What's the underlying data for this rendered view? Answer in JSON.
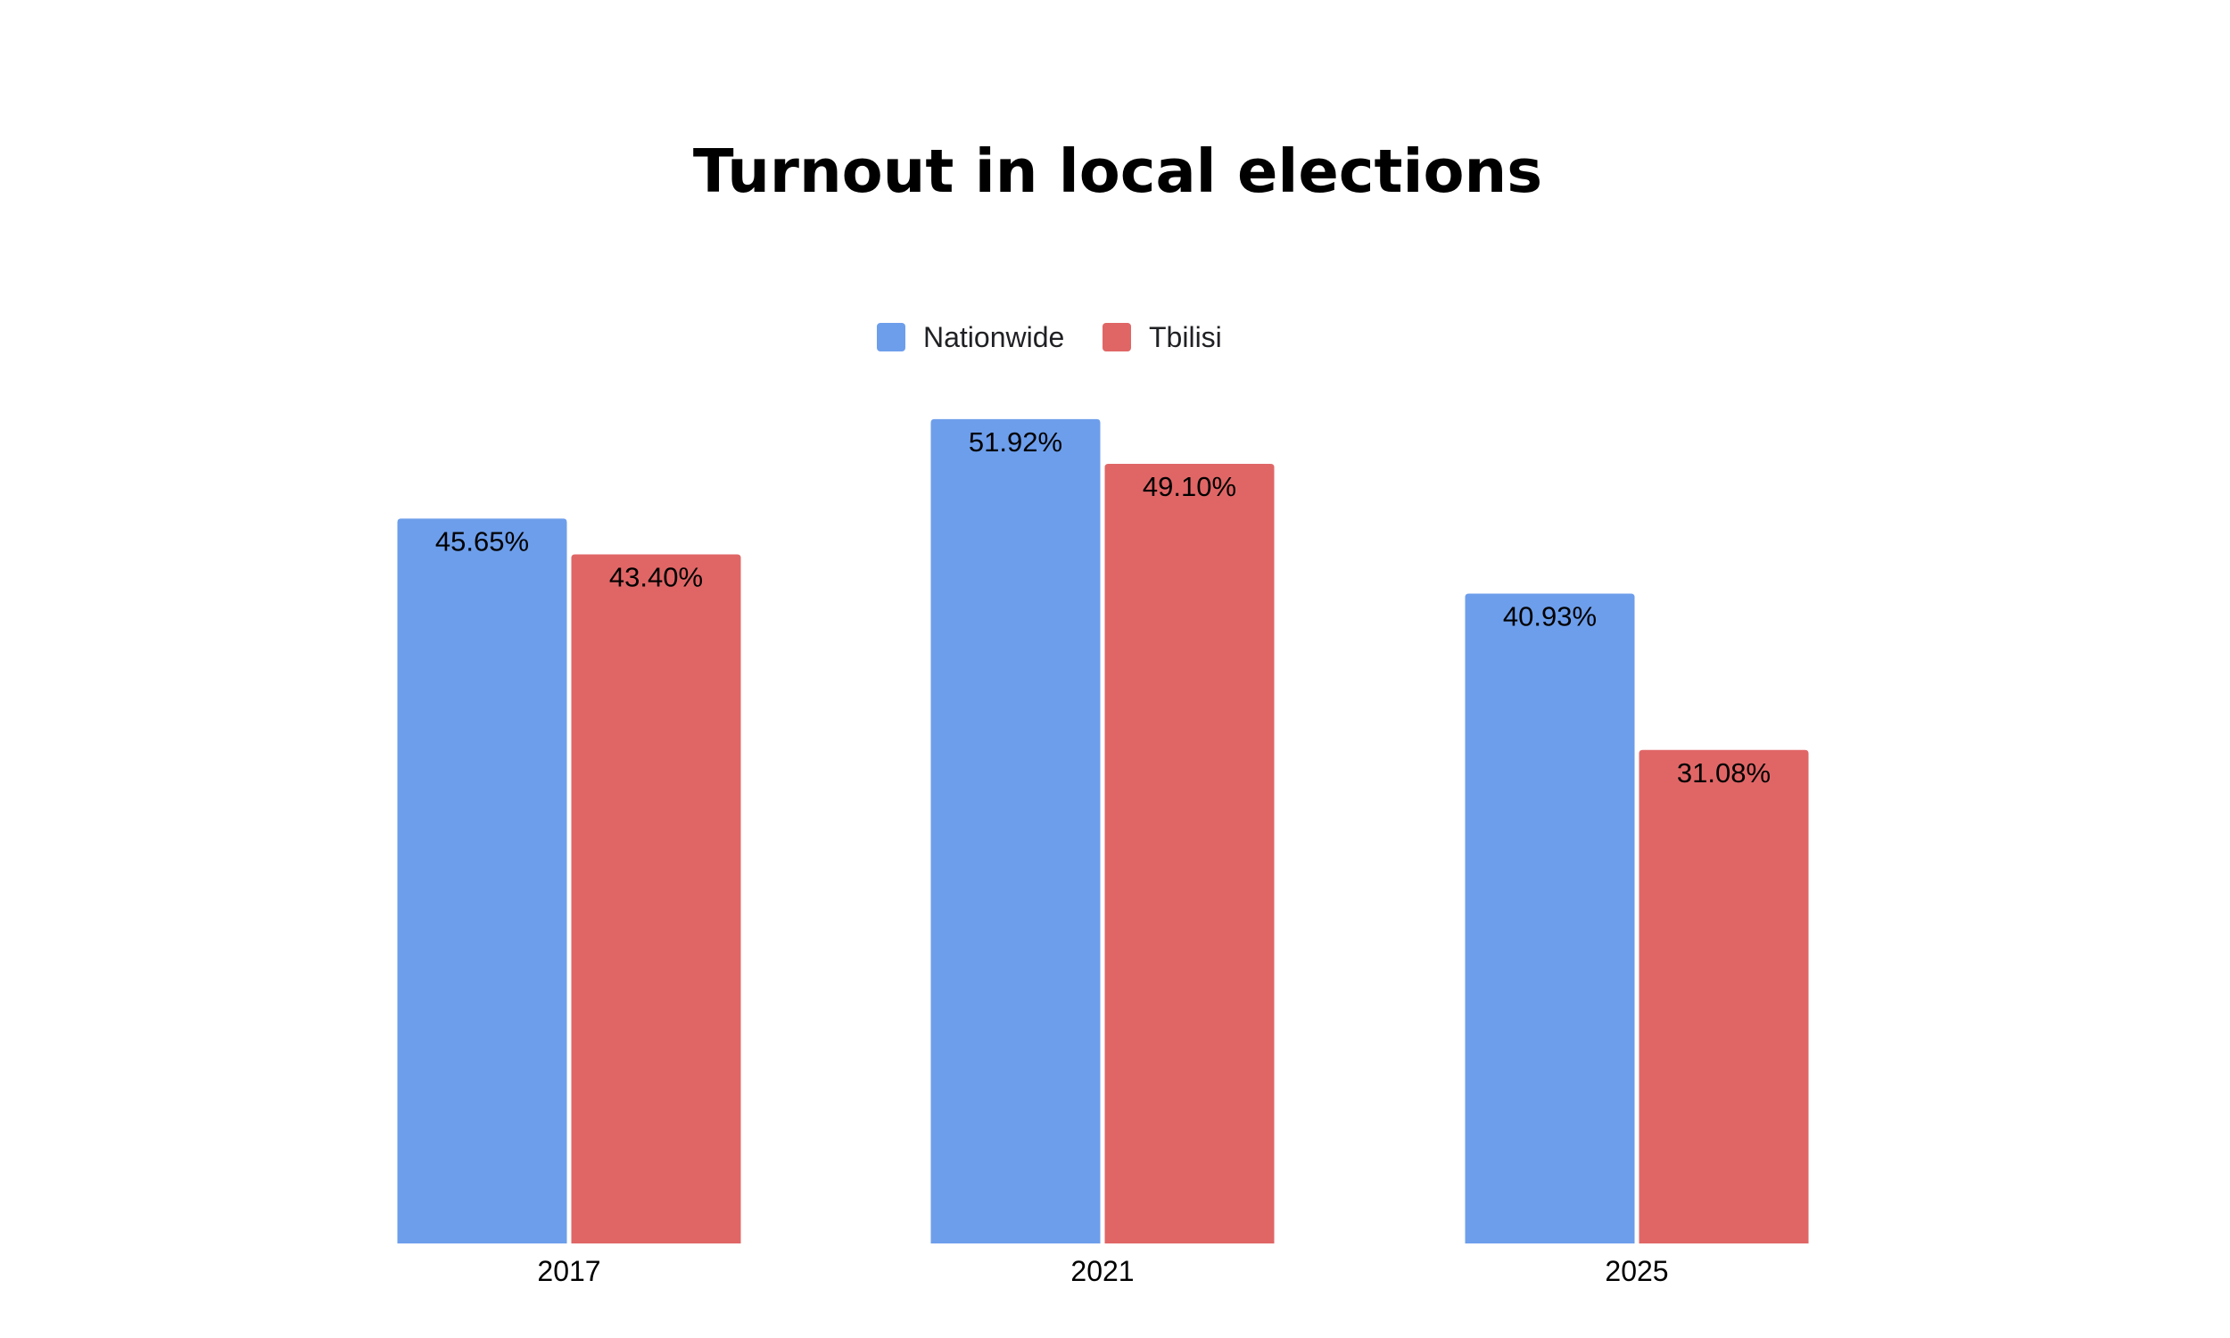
{
  "chart_data": {
    "type": "bar",
    "title": "Turnout in local elections",
    "categories": [
      "2017",
      "2021",
      "2025"
    ],
    "series": [
      {
        "name": "Nationwide",
        "color": "#6d9eeb",
        "values": [
          45.65,
          51.92,
          40.93
        ],
        "labels": [
          "45.65%",
          "51.92%",
          "40.93%"
        ]
      },
      {
        "name": "Tbilisi",
        "color": "#e06666",
        "values": [
          43.4,
          49.1,
          31.08
        ],
        "labels": [
          "43.40%",
          "49.10%",
          "31.08%"
        ]
      }
    ],
    "ylim": [
      0,
      55
    ],
    "grid": false,
    "legend_position": "top-center",
    "xlabel": "",
    "ylabel": ""
  }
}
